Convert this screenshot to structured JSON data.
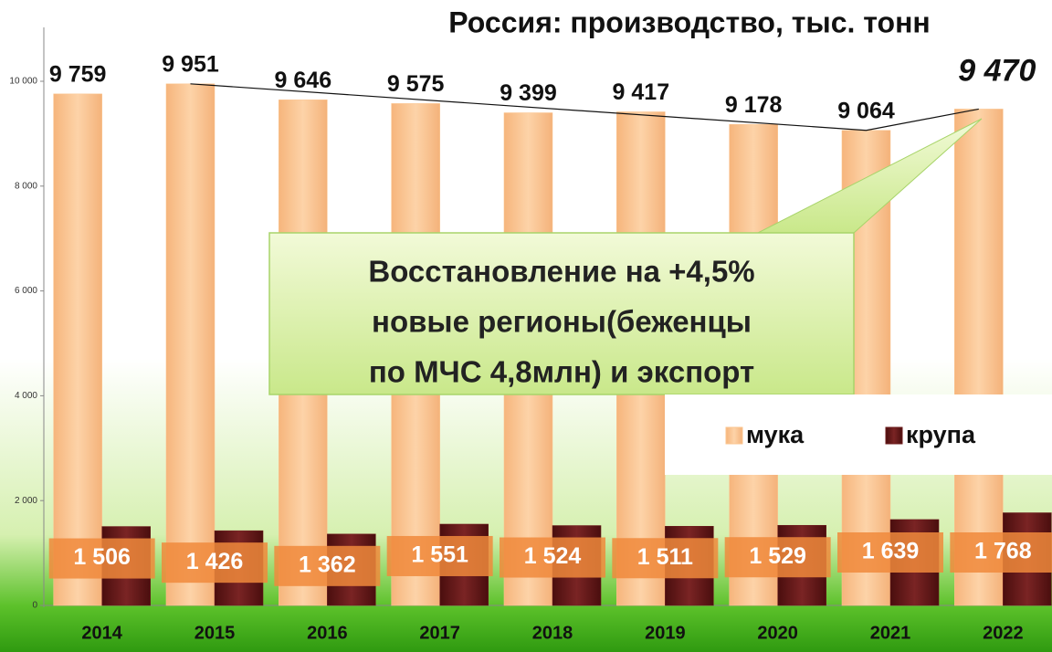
{
  "chart_data": {
    "type": "bar",
    "title": "Россия: производство, тыс. тонн",
    "annotation": [
      "Восстановление на +4,5%",
      "новые регионы(беженцы",
      "по МЧС 4,8млн) и экспорт"
    ],
    "categories": [
      "2014",
      "2015",
      "2016",
      "2017",
      "2018",
      "2019",
      "2020",
      "2021",
      "2022"
    ],
    "series": [
      {
        "name": "мука",
        "color": "#fbc58f",
        "values": [
          9759,
          9951,
          9646,
          9575,
          9399,
          9417,
          9178,
          9064,
          9470
        ],
        "value_labels": [
          "9 759",
          "9 951",
          "9 646",
          "9 575",
          "9 399",
          "9 417",
          "9 178",
          "9 064",
          "9 470"
        ]
      },
      {
        "name": "крупа",
        "color": "#6e1c1c",
        "values": [
          1506,
          1426,
          1362,
          1551,
          1524,
          1511,
          1529,
          1639,
          1768
        ],
        "value_labels": [
          "1 506",
          "1 426",
          "1 362",
          "1 551",
          "1 524",
          "1 511",
          "1 529",
          "1 639",
          "1 768"
        ]
      }
    ],
    "ylim": [
      0,
      10000
    ],
    "yticks": [
      0,
      {
        "value": 2000,
        "label": "2 000"
      },
      {
        "value": 4000,
        "label": "4 000"
      },
      {
        "value": 6000,
        "label": "6 000"
      },
      {
        "value": 8000,
        "label": "8 000"
      },
      {
        "value": 10000,
        "label": "10 000"
      }
    ],
    "legend": "right"
  }
}
